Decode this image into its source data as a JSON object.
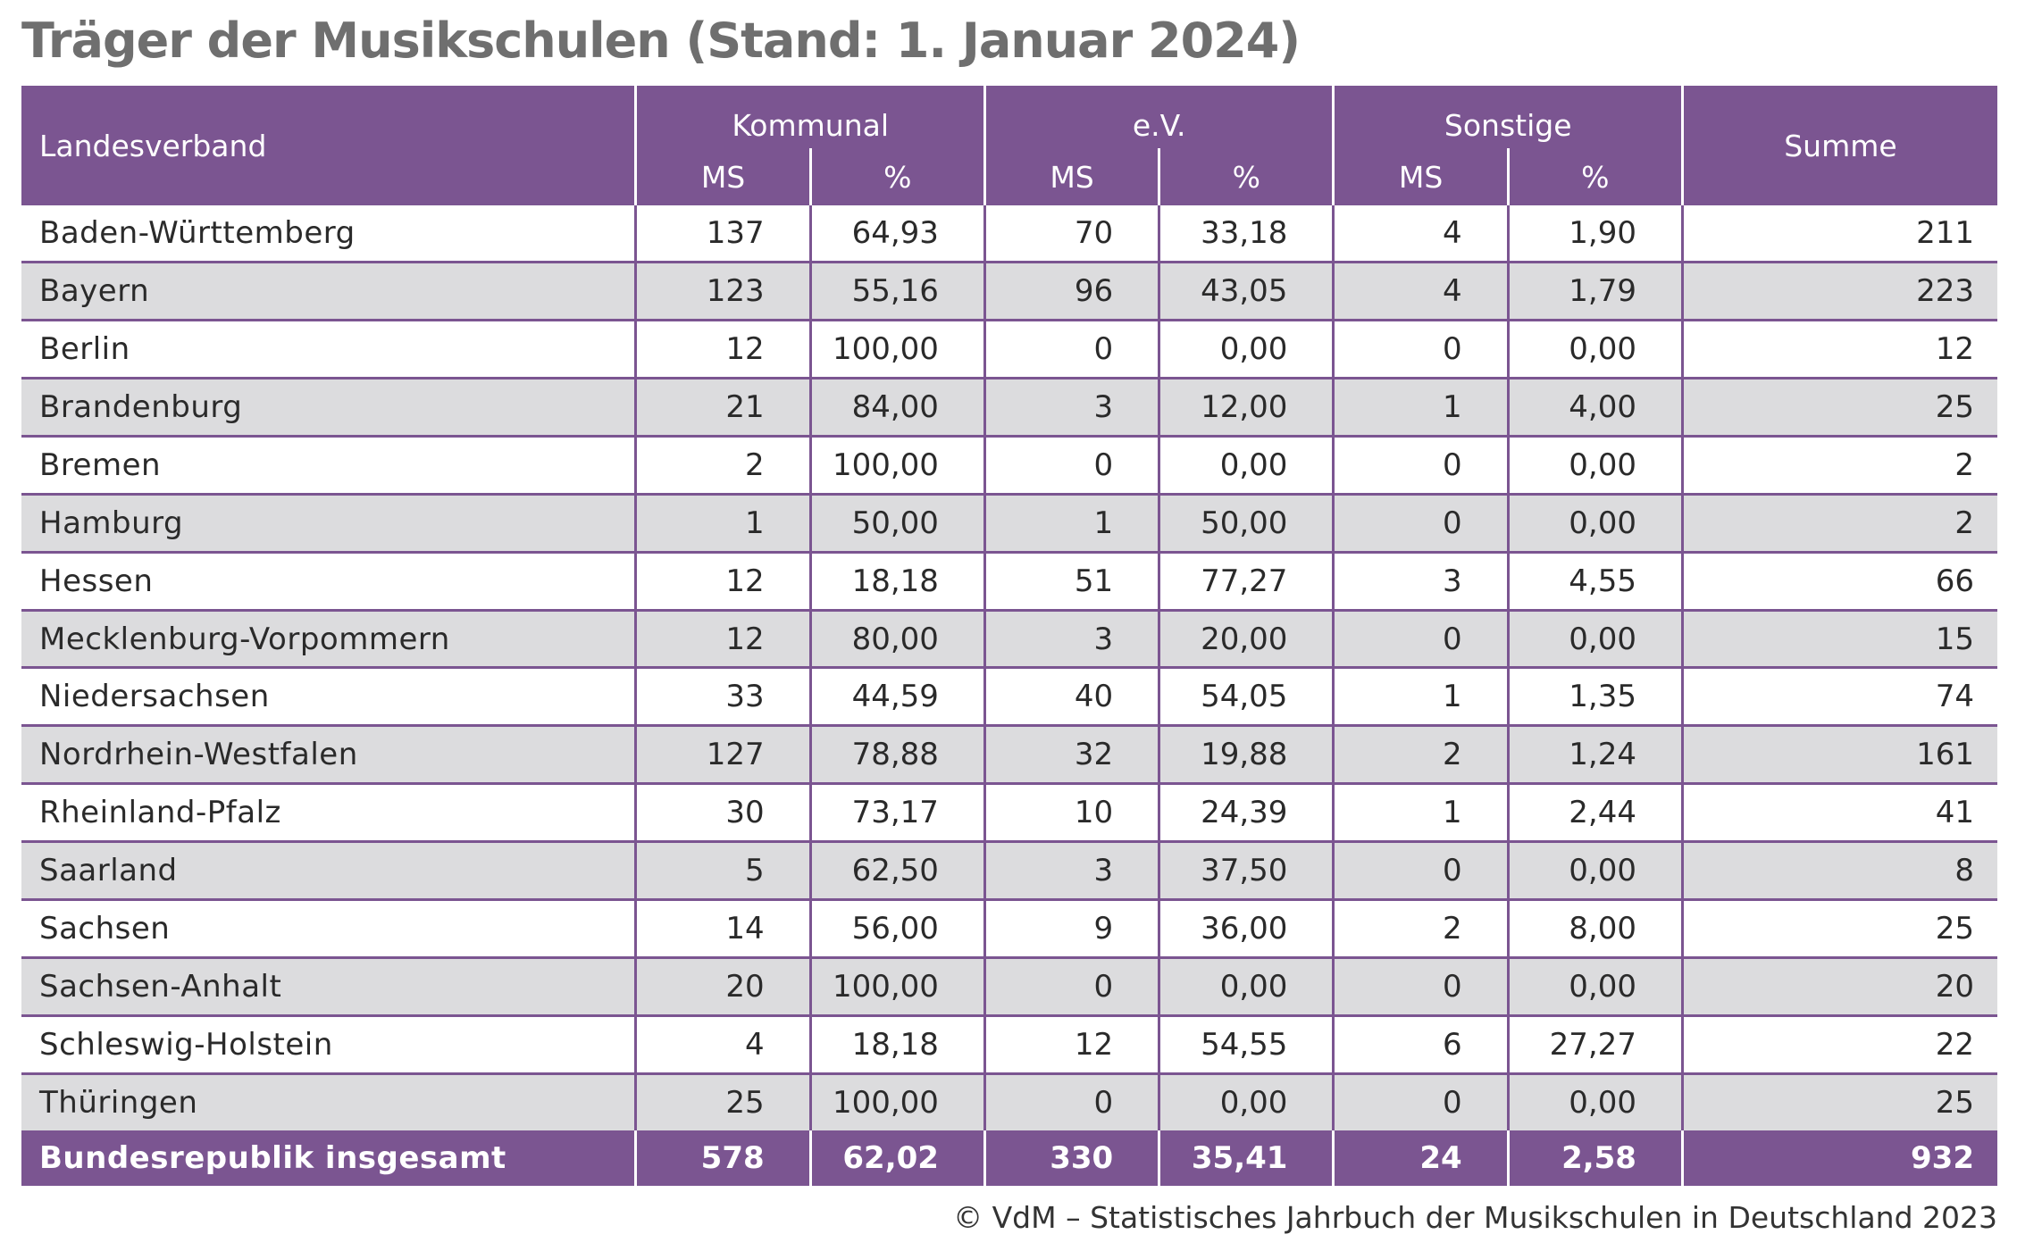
{
  "title": "Träger der Musikschulen (Stand: 1. Januar 2024)",
  "header": {
    "landesverband": "Landesverband",
    "kommunal": "Kommunal",
    "ev": "e.V.",
    "sonstige": "Sonstige",
    "summe": "Summe",
    "ms": "MS",
    "pct": "%"
  },
  "rows": [
    {
      "land": "Baden-Württemberg",
      "k_ms": "137",
      "k_pct": "64,93",
      "e_ms": "70",
      "e_pct": "33,18",
      "s_ms": "4",
      "s_pct": "1,90",
      "sum": "211"
    },
    {
      "land": "Bayern",
      "k_ms": "123",
      "k_pct": "55,16",
      "e_ms": "96",
      "e_pct": "43,05",
      "s_ms": "4",
      "s_pct": "1,79",
      "sum": "223"
    },
    {
      "land": "Berlin",
      "k_ms": "12",
      "k_pct": "100,00",
      "e_ms": "0",
      "e_pct": "0,00",
      "s_ms": "0",
      "s_pct": "0,00",
      "sum": "12"
    },
    {
      "land": "Brandenburg",
      "k_ms": "21",
      "k_pct": "84,00",
      "e_ms": "3",
      "e_pct": "12,00",
      "s_ms": "1",
      "s_pct": "4,00",
      "sum": "25"
    },
    {
      "land": "Bremen",
      "k_ms": "2",
      "k_pct": "100,00",
      "e_ms": "0",
      "e_pct": "0,00",
      "s_ms": "0",
      "s_pct": "0,00",
      "sum": "2"
    },
    {
      "land": "Hamburg",
      "k_ms": "1",
      "k_pct": "50,00",
      "e_ms": "1",
      "e_pct": "50,00",
      "s_ms": "0",
      "s_pct": "0,00",
      "sum": "2"
    },
    {
      "land": "Hessen",
      "k_ms": "12",
      "k_pct": "18,18",
      "e_ms": "51",
      "e_pct": "77,27",
      "s_ms": "3",
      "s_pct": "4,55",
      "sum": "66"
    },
    {
      "land": "Mecklenburg-Vorpommern",
      "k_ms": "12",
      "k_pct": "80,00",
      "e_ms": "3",
      "e_pct": "20,00",
      "s_ms": "0",
      "s_pct": "0,00",
      "sum": "15"
    },
    {
      "land": "Niedersachsen",
      "k_ms": "33",
      "k_pct": "44,59",
      "e_ms": "40",
      "e_pct": "54,05",
      "s_ms": "1",
      "s_pct": "1,35",
      "sum": "74"
    },
    {
      "land": "Nordrhein-Westfalen",
      "k_ms": "127",
      "k_pct": "78,88",
      "e_ms": "32",
      "e_pct": "19,88",
      "s_ms": "2",
      "s_pct": "1,24",
      "sum": "161"
    },
    {
      "land": "Rheinland-Pfalz",
      "k_ms": "30",
      "k_pct": "73,17",
      "e_ms": "10",
      "e_pct": "24,39",
      "s_ms": "1",
      "s_pct": "2,44",
      "sum": "41"
    },
    {
      "land": "Saarland",
      "k_ms": "5",
      "k_pct": "62,50",
      "e_ms": "3",
      "e_pct": "37,50",
      "s_ms": "0",
      "s_pct": "0,00",
      "sum": "8"
    },
    {
      "land": "Sachsen",
      "k_ms": "14",
      "k_pct": "56,00",
      "e_ms": "9",
      "e_pct": "36,00",
      "s_ms": "2",
      "s_pct": "8,00",
      "sum": "25"
    },
    {
      "land": "Sachsen-Anhalt",
      "k_ms": "20",
      "k_pct": "100,00",
      "e_ms": "0",
      "e_pct": "0,00",
      "s_ms": "0",
      "s_pct": "0,00",
      "sum": "20"
    },
    {
      "land": "Schleswig-Holstein",
      "k_ms": "4",
      "k_pct": "18,18",
      "e_ms": "12",
      "e_pct": "54,55",
      "s_ms": "6",
      "s_pct": "27,27",
      "sum": "22"
    },
    {
      "land": "Thüringen",
      "k_ms": "25",
      "k_pct": "100,00",
      "e_ms": "0",
      "e_pct": "0,00",
      "s_ms": "0",
      "s_pct": "0,00",
      "sum": "25"
    }
  ],
  "total": {
    "land": "Bundesrepublik insgesamt",
    "k_ms": "578",
    "k_pct": "62,02",
    "e_ms": "330",
    "e_pct": "35,41",
    "s_ms": "24",
    "s_pct": "2,58",
    "sum": "932"
  },
  "footer": "© VdM – Statistisches Jahrbuch der Musikschulen in Deutschland 2023",
  "colors": {
    "header_bg": "#7b5591",
    "row_alt": "#dcdcde",
    "title": "#6f6f6f"
  }
}
